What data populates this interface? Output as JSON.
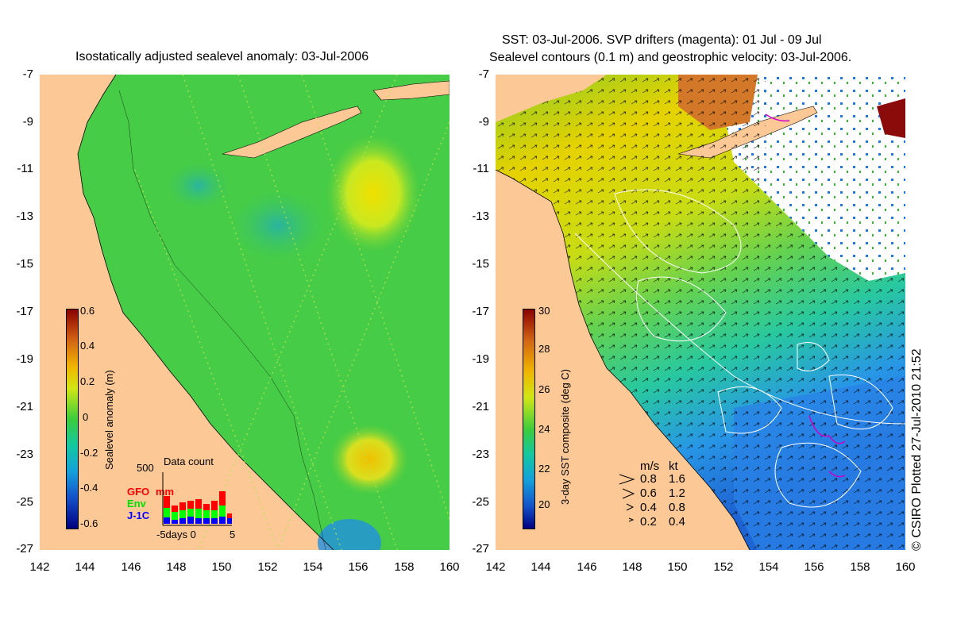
{
  "left_panel": {
    "title": "Isostatically adjusted sealevel anomaly: 03-Jul-2006",
    "colorbar_label": "Sealevel anomaly (m)",
    "colorbar_ticks": [
      "0.6",
      "0.4",
      "0.2",
      "0",
      "-0.2",
      "-0.4",
      "-0.6"
    ],
    "data_count": {
      "title": "Data count",
      "max_label": "500",
      "series": [
        {
          "name": "GFO",
          "color": "#ff0000"
        },
        {
          "name": "Env",
          "color": "#00ff00"
        },
        {
          "name": "J-1C",
          "color": "#0000ff"
        }
      ],
      "mm_label": "mm",
      "x_axis_label": "-5days 0",
      "x_axis_end": "5"
    }
  },
  "right_panel": {
    "title_line1": "SST: 03-Jul-2006. SVP drifters (magenta): 01 Jul - 09 Jul",
    "title_line2": "Sealevel contours (0.1 m) and geostrophic velocity: 03-Jul-2006.",
    "colorbar_label": "3-day SST composite (deg C)",
    "colorbar_ticks": [
      "30",
      "28",
      "26",
      "24",
      "22",
      "20"
    ],
    "velocity_legend": {
      "header_ms": "m/s",
      "header_kt": "kt",
      "rows": [
        {
          "ms": "0.8",
          "kt": "1.6"
        },
        {
          "ms": "0.6",
          "kt": "1.2"
        },
        {
          "ms": "0.4",
          "kt": "0.8"
        },
        {
          "ms": "0.2",
          "kt": "0.4"
        }
      ]
    }
  },
  "axes": {
    "y_ticks": [
      "-7",
      "-9",
      "-11",
      "-13",
      "-15",
      "-17",
      "-19",
      "-21",
      "-23",
      "-25",
      "-27"
    ],
    "x_ticks": [
      "142",
      "144",
      "146",
      "148",
      "150",
      "152",
      "154",
      "156",
      "158",
      "160"
    ]
  },
  "credit": "© CSIRO Plotted 27-Jul-2010 21:52",
  "colors": {
    "land": "#fcc896",
    "ocean_mid": "#3ccc3c",
    "sst_warm": "#f0c800",
    "sst_cool": "#1e78ff",
    "contour": "#ffffff",
    "drifter": "#cc00cc"
  }
}
